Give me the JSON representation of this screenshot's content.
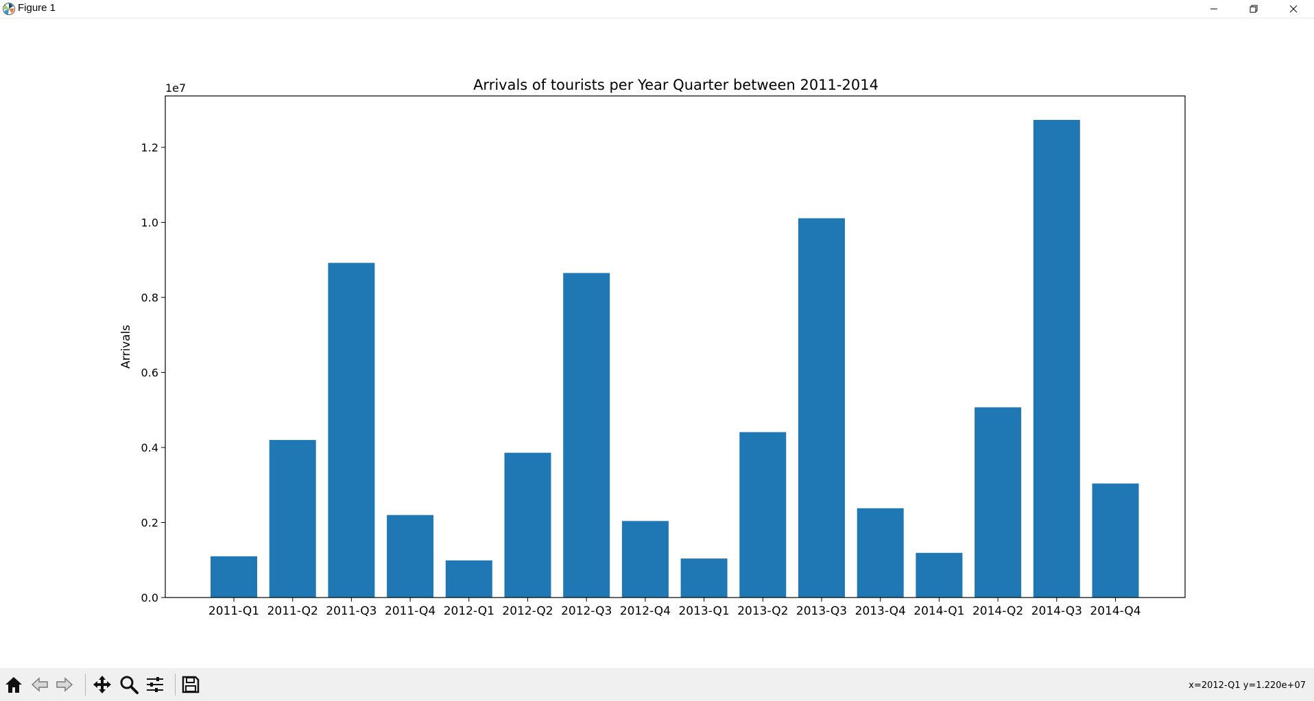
{
  "window": {
    "title": "Figure 1",
    "icons": [
      "matplotlib-logo-icon",
      "minimize-icon",
      "restore-icon",
      "close-icon"
    ]
  },
  "toolbar": {
    "buttons": [
      "home-icon",
      "back-icon",
      "forward-icon",
      "pan-icon",
      "zoom-icon",
      "configure-subplots-icon",
      "save-icon"
    ],
    "coords_text": "x=2012-Q1 y=1.220e+07"
  },
  "chart_data": {
    "type": "bar",
    "title": "Arrivals of tourists per Year Quarter between 2011-2014",
    "xlabel": "",
    "ylabel": "Arrivals",
    "offset_text": "1e7",
    "categories": [
      "2011-Q1",
      "2011-Q2",
      "2011-Q3",
      "2011-Q4",
      "2012-Q1",
      "2012-Q2",
      "2012-Q3",
      "2012-Q4",
      "2013-Q1",
      "2013-Q2",
      "2013-Q3",
      "2013-Q4",
      "2014-Q1",
      "2014-Q2",
      "2014-Q3",
      "2014-Q4"
    ],
    "values": [
      1100000,
      4200000,
      8920000,
      2200000,
      990000,
      3860000,
      8650000,
      2040000,
      1040000,
      4410000,
      10110000,
      2380000,
      1190000,
      5070000,
      12730000,
      3040000
    ],
    "yticks": [
      0,
      2000000,
      4000000,
      6000000,
      8000000,
      10000000,
      12000000
    ],
    "ytick_labels": [
      "0.0",
      "0.2",
      "0.4",
      "0.6",
      "0.8",
      "1.0",
      "1.2"
    ],
    "ylim": [
      0,
      13370000
    ],
    "bar_color": "#1f77b4",
    "grid": false,
    "legend": false
  }
}
